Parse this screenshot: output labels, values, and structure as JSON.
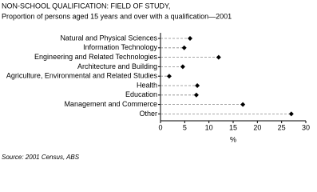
{
  "chart_data": {
    "type": "dot",
    "title": "NON-SCHOOL QUALIFICATION: FIELD OF STUDY,",
    "subtitle": "Proportion of persons aged 15 years and over with a qualification—2001",
    "categories": [
      "Natural and Physical Sciences",
      "Information Technology",
      "Engineering and Related Technologies",
      "Architecture and Building",
      "Agriculture, Environmental and Related Studies",
      "Health",
      "Education",
      "Management and Commerce",
      "Other"
    ],
    "values": [
      6.1,
      4.9,
      12.0,
      4.6,
      1.8,
      7.6,
      7.4,
      17.0,
      27.0
    ],
    "color": "#000000",
    "xlabel": "%",
    "xlim": [
      0,
      30
    ],
    "xticks": [
      0,
      5,
      10,
      15,
      20,
      25,
      30
    ],
    "source": "Source: 2001 Census, ABS"
  }
}
